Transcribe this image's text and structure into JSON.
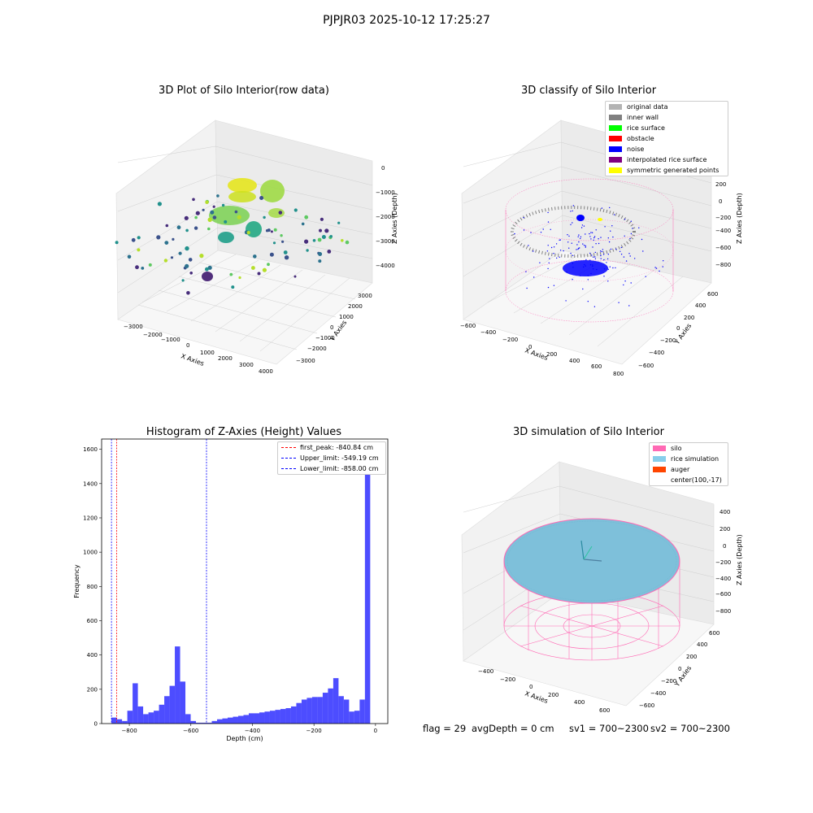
{
  "suptitle": "PJPJR03 2025-10-12 17:25:27",
  "panels": {
    "raw": {
      "title": "3D Plot of Silo Interior(row data)",
      "xlabel": "X Axies",
      "ylabel": "Y Axies",
      "zlabel": "Z Axies (Depth)",
      "xticks": [
        "−3000",
        "−2000",
        "−1000",
        "0",
        "1000",
        "2000",
        "3000",
        "4000"
      ],
      "yticks": [
        "3000",
        "2000",
        "1000",
        "0",
        "−1000",
        "−2000",
        "−3000"
      ],
      "zticks": [
        "0",
        "−1000",
        "−2000",
        "−3000",
        "−4000"
      ]
    },
    "classify": {
      "title": "3D classify of Silo Interior",
      "xlabel": "X Axies",
      "ylabel": "Y Axies",
      "zlabel": "Z Axies (Depth)",
      "xticks": [
        "−600",
        "−400",
        "−200",
        "0",
        "200",
        "400",
        "600",
        "800"
      ],
      "yticks": [
        "600",
        "400",
        "200",
        "0",
        "−200",
        "−400",
        "−600"
      ],
      "zticks": [
        "200",
        "0",
        "−200",
        "−400",
        "−600",
        "−800"
      ],
      "legend": [
        {
          "label": "original data",
          "color": "#b3b3b3"
        },
        {
          "label": "inner wall",
          "color": "#808080"
        },
        {
          "label": "rice surface",
          "color": "#00ff00"
        },
        {
          "label": "obstacle",
          "color": "#ff0000"
        },
        {
          "label": "noise",
          "color": "#0000ff"
        },
        {
          "label": "interpolated rice surface",
          "color": "#800080"
        },
        {
          "label": "symmetric generated points",
          "color": "#ffff00"
        }
      ]
    },
    "histogram": {
      "title": "Histogram of Z-Axies (Height) Values",
      "legend": [
        {
          "label": "first_peak: -840.84 cm",
          "color": "#ff0000"
        },
        {
          "label": "Upper_limit: -549.19 cm",
          "color": "#0000ff"
        },
        {
          "label": "Lower_limit: -858.00 cm",
          "color": "#0000ff"
        }
      ]
    },
    "simulation": {
      "title": "3D simulation of Silo Interior",
      "xlabel": "X Axies",
      "ylabel": "Y Axies",
      "zlabel": "Z Axies (Depth)",
      "xticks": [
        "−400",
        "−200",
        "0",
        "200",
        "400",
        "600"
      ],
      "yticks": [
        "600",
        "400",
        "200",
        "0",
        "−200",
        "−400",
        "−600"
      ],
      "zticks": [
        "400",
        "200",
        "0",
        "−200",
        "−400",
        "−600",
        "−800"
      ],
      "legend": [
        {
          "label": "silo",
          "color": "#ff69b4"
        },
        {
          "label": "rice simulation",
          "color": "#87ceeb"
        },
        {
          "label": "auger",
          "color": "#ff4500"
        },
        {
          "label": "center(100,-17)",
          "color": ""
        }
      ]
    }
  },
  "footer": {
    "flag": "flag = 29",
    "avg_depth": "avgDepth = 0 cm",
    "sv1": "sv1 = 700~2300",
    "sv2": "sv2 = 700~2300"
  },
  "chart_data": [
    {
      "type": "scatter",
      "title": "3D Plot of Silo Interior(row data)",
      "xlabel": "X Axies",
      "ylabel": "Y Axies",
      "zlabel": "Z Axies (Depth)",
      "xlim": [
        -3500,
        4500
      ],
      "ylim": [
        -3500,
        3500
      ],
      "zlim": [
        -4500,
        0
      ],
      "colormap": "viridis"
    },
    {
      "type": "scatter",
      "title": "3D classify of Silo Interior",
      "xlabel": "X Axies",
      "ylabel": "Y Axies",
      "zlabel": "Z Axies (Depth)",
      "xlim": [
        -600,
        800
      ],
      "ylim": [
        -600,
        600
      ],
      "zlim": [
        -900,
        250
      ],
      "series": [
        {
          "name": "original data"
        },
        {
          "name": "inner wall"
        },
        {
          "name": "rice surface"
        },
        {
          "name": "obstacle"
        },
        {
          "name": "noise"
        },
        {
          "name": "interpolated rice surface"
        },
        {
          "name": "symmetric generated points"
        }
      ]
    },
    {
      "type": "bar",
      "title": "Histogram of Z-Axies (Height) Values",
      "xlabel": "Depth (cm)",
      "ylabel": "Frequency",
      "xlim": [
        -890,
        40
      ],
      "ylim": [
        0,
        1660
      ],
      "xticks": [
        -800,
        -600,
        -400,
        -200,
        0
      ],
      "yticks": [
        0,
        200,
        400,
        600,
        800,
        1000,
        1200,
        1400,
        1600
      ],
      "bin_start": -858,
      "bin_width": 17.16,
      "values": [
        35,
        25,
        15,
        75,
        235,
        100,
        55,
        65,
        75,
        110,
        160,
        220,
        450,
        245,
        55,
        15,
        5,
        5,
        5,
        15,
        25,
        30,
        35,
        40,
        45,
        50,
        60,
        60,
        65,
        70,
        75,
        80,
        85,
        90,
        100,
        120,
        140,
        150,
        155,
        155,
        180,
        205,
        265,
        160,
        140,
        70,
        75,
        140,
        1570
      ],
      "vlines": [
        {
          "name": "first_peak: -840.84 cm",
          "x": -840.84,
          "color": "#ff0000"
        },
        {
          "name": "Upper_limit: -549.19 cm",
          "x": -549.19,
          "color": "#0000ff"
        },
        {
          "name": "Lower_limit: -858.00 cm",
          "x": -858.0,
          "color": "#0000ff"
        }
      ]
    },
    {
      "type": "scatter",
      "title": "3D simulation of Silo Interior",
      "xlabel": "X Axies",
      "ylabel": "Y Axies",
      "zlabel": "Z Axies (Depth)",
      "xlim": [
        -500,
        700
      ],
      "ylim": [
        -600,
        600
      ],
      "zlim": [
        -900,
        450
      ],
      "series": [
        {
          "name": "silo"
        },
        {
          "name": "rice simulation"
        },
        {
          "name": "auger"
        },
        {
          "name": "center(100,-17)"
        }
      ]
    }
  ]
}
